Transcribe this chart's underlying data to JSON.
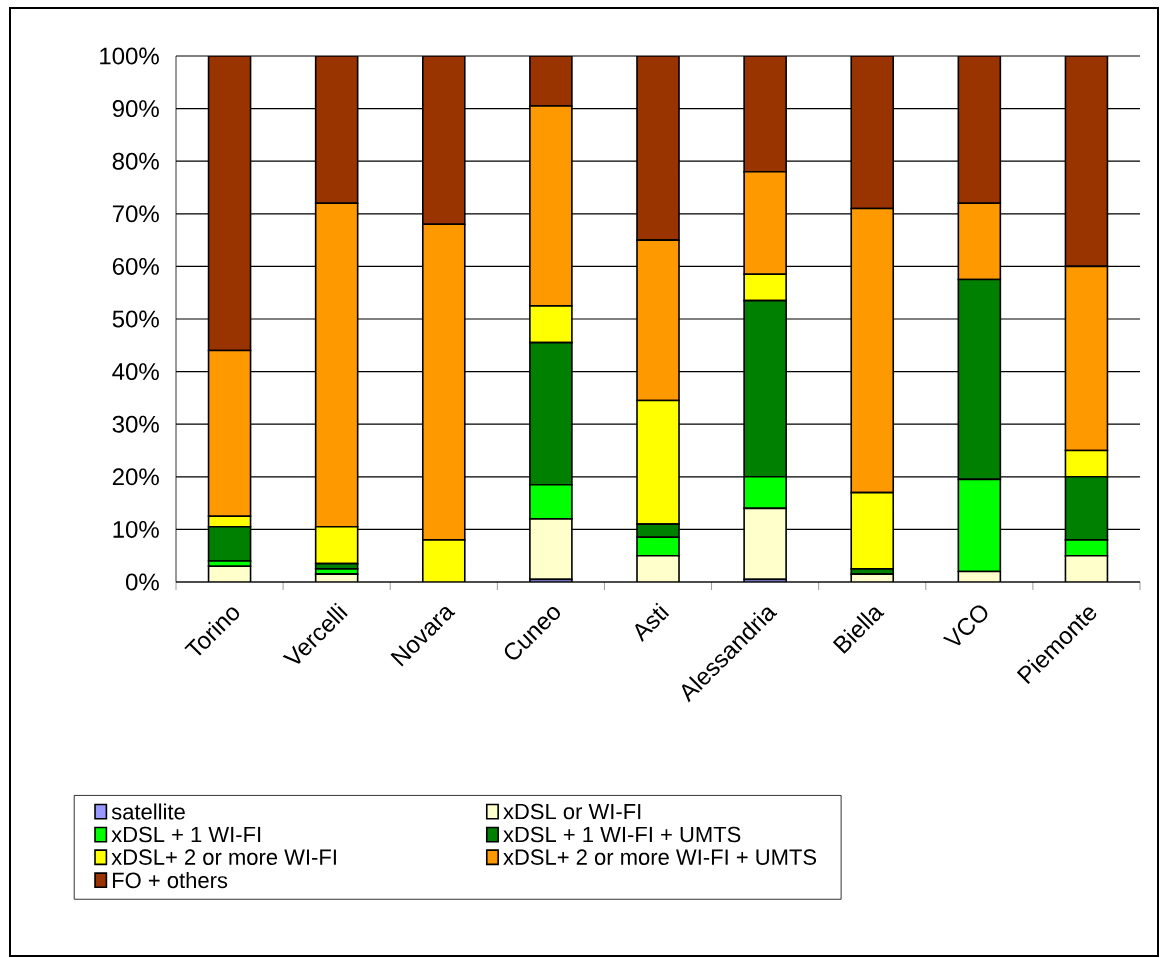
{
  "chart_data": {
    "type": "bar",
    "stacked": true,
    "grid": "y",
    "legend": "bottom",
    "categories": [
      "Torino",
      "Vercelli",
      "Novara",
      "Cuneo",
      "Asti",
      "Alessandria",
      "Biella",
      "VCO",
      "Piemonte"
    ],
    "ylim": [
      0,
      100
    ],
    "yticks": [
      {
        "value": 0,
        "label": "0%"
      },
      {
        "value": 10,
        "label": "10%"
      },
      {
        "value": 20,
        "label": "20%"
      },
      {
        "value": 30,
        "label": "30%"
      },
      {
        "value": 40,
        "label": "40%"
      },
      {
        "value": 50,
        "label": "50%"
      },
      {
        "value": 60,
        "label": "60%"
      },
      {
        "value": 70,
        "label": "70%"
      },
      {
        "value": 80,
        "label": "80%"
      },
      {
        "value": 90,
        "label": "90%"
      },
      {
        "value": 100,
        "label": "100%"
      }
    ],
    "series": [
      {
        "name": "satellite",
        "color": "#9999ff",
        "values": [
          0,
          0,
          0,
          0.5,
          0,
          0.5,
          0,
          0,
          0
        ]
      },
      {
        "name": "xDSL or WI-FI",
        "color": "#ffffcc",
        "values": [
          3,
          1.5,
          0,
          11.5,
          5,
          13.5,
          1.5,
          2,
          5
        ]
      },
      {
        "name": "xDSL + 1 WI-FI",
        "color": "#00ff00",
        "values": [
          1,
          1,
          0,
          6.5,
          3.5,
          6,
          0,
          17.5,
          3
        ]
      },
      {
        "name": "xDSL + 1 WI-FI + UMTS",
        "color": "#008000",
        "values": [
          6.5,
          1,
          0,
          27,
          2.5,
          33.5,
          1,
          38,
          12
        ]
      },
      {
        "name": "xDSL+ 2 or more WI-FI",
        "color": "#ffff00",
        "values": [
          2,
          7,
          8,
          7,
          23.5,
          5,
          14.5,
          0,
          5
        ]
      },
      {
        "name": "xDSL+ 2 or more WI-FI + UMTS",
        "color": "#ff9900",
        "values": [
          31.5,
          61.5,
          60,
          38,
          30.5,
          19.5,
          54,
          14.5,
          35
        ]
      },
      {
        "name": "FO + others",
        "color": "#993300",
        "values": [
          56,
          28,
          32,
          9.5,
          35,
          22,
          29,
          28,
          40
        ]
      }
    ]
  }
}
